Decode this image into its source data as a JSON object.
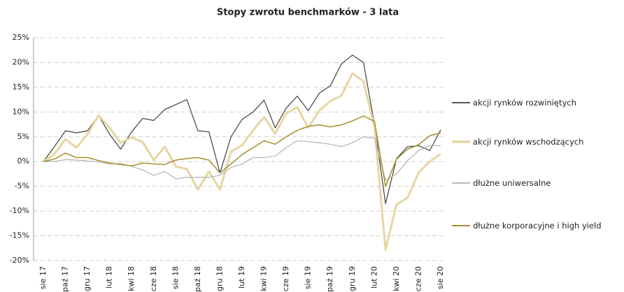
{
  "chart_data": {
    "type": "line",
    "title": "Stopy zwrotu benchmarków - 3 lata",
    "categories": [
      "sie 17",
      null,
      "paź 17",
      null,
      "gru 17",
      null,
      "lut 18",
      null,
      "kwi 18",
      null,
      "cze 18",
      null,
      "sie 18",
      null,
      "paź 18",
      null,
      "gru 18",
      null,
      "lut 19",
      null,
      "kwi 19",
      null,
      "cze 19",
      null,
      "sie 19",
      null,
      "paź 19",
      null,
      "gru 19",
      null,
      "lut 20",
      null,
      "kwi 20",
      null,
      "cze 20",
      null,
      "sie 20"
    ],
    "series": [
      {
        "name": "akcji rynków rozwiniętych",
        "color": "#404040",
        "width": 1.2,
        "values": [
          0,
          3,
          6.2,
          5.8,
          6.2,
          9.3,
          5.5,
          2.5,
          6,
          8.7,
          8.3,
          10.5,
          11.5,
          12.5,
          6.2,
          6,
          -2.3,
          5,
          8.5,
          10,
          12.4,
          6.8,
          10.8,
          13.2,
          10.3,
          13.8,
          15.3,
          19.7,
          21.5,
          20,
          7.5,
          -8.5,
          0.6,
          3,
          3.2,
          2.2,
          6.4
        ]
      },
      {
        "name": "akcji rynków wschodzących",
        "color": "#e6d6a2",
        "width": 3,
        "values": [
          0,
          1.5,
          4.5,
          2.8,
          5.5,
          9.3,
          6.8,
          3.8,
          4.9,
          3.9,
          0.3,
          3,
          -1,
          -1.5,
          -5.7,
          -2,
          -5.6,
          2,
          3.3,
          6.3,
          9,
          5.6,
          9.7,
          11,
          6.8,
          10.3,
          12.2,
          13.3,
          17.8,
          16.2,
          7,
          -17.8,
          -8.7,
          -7.3,
          -2.2,
          0,
          1.5
        ]
      },
      {
        "name": "dłużne uniwersalne",
        "color": "#b3b3b3",
        "width": 1.2,
        "values": [
          0,
          0,
          0.4,
          0.3,
          0.1,
          -0.1,
          -0.5,
          -0.4,
          -1,
          -1.7,
          -2.8,
          -2,
          -3.5,
          -3.2,
          -3.2,
          -3.2,
          -2.8,
          -1.2,
          -0.5,
          0.8,
          0.8,
          1.1,
          2.8,
          4.2,
          4,
          3.8,
          3.5,
          3,
          3.8,
          5,
          4.7,
          -3.8,
          -2.5,
          0.2,
          2.2,
          3.2,
          3.2
        ]
      },
      {
        "name": "dłużne korporacyjne i high yield",
        "color": "#a68f2c",
        "width": 1.5,
        "values": [
          0,
          0.5,
          1.7,
          0.8,
          0.8,
          0.2,
          -0.3,
          -0.6,
          -0.9,
          -0.3,
          -0.5,
          -0.6,
          0.3,
          0.6,
          0.8,
          0.3,
          -2.3,
          -0.5,
          1.4,
          2.8,
          4.2,
          3.5,
          5,
          6.3,
          7.1,
          7.4,
          7,
          7.4,
          8.2,
          9.2,
          8.1,
          -5,
          0.5,
          2.5,
          3.4,
          5.2,
          5.8
        ]
      }
    ],
    "ylim": [
      -20,
      25
    ],
    "yticks": [
      {
        "value": -20,
        "label": "-20%"
      },
      {
        "value": -15,
        "label": "-15%"
      },
      {
        "value": -10,
        "label": "-10%"
      },
      {
        "value": -5,
        "label": "-5%"
      },
      {
        "value": 0,
        "label": "0%"
      },
      {
        "value": 5,
        "label": "5%"
      },
      {
        "value": 10,
        "label": "10%"
      },
      {
        "value": 15,
        "label": "15%"
      },
      {
        "value": 20,
        "label": "20%"
      },
      {
        "value": 25,
        "label": "25%"
      }
    ],
    "grid": true,
    "legend": "right"
  }
}
